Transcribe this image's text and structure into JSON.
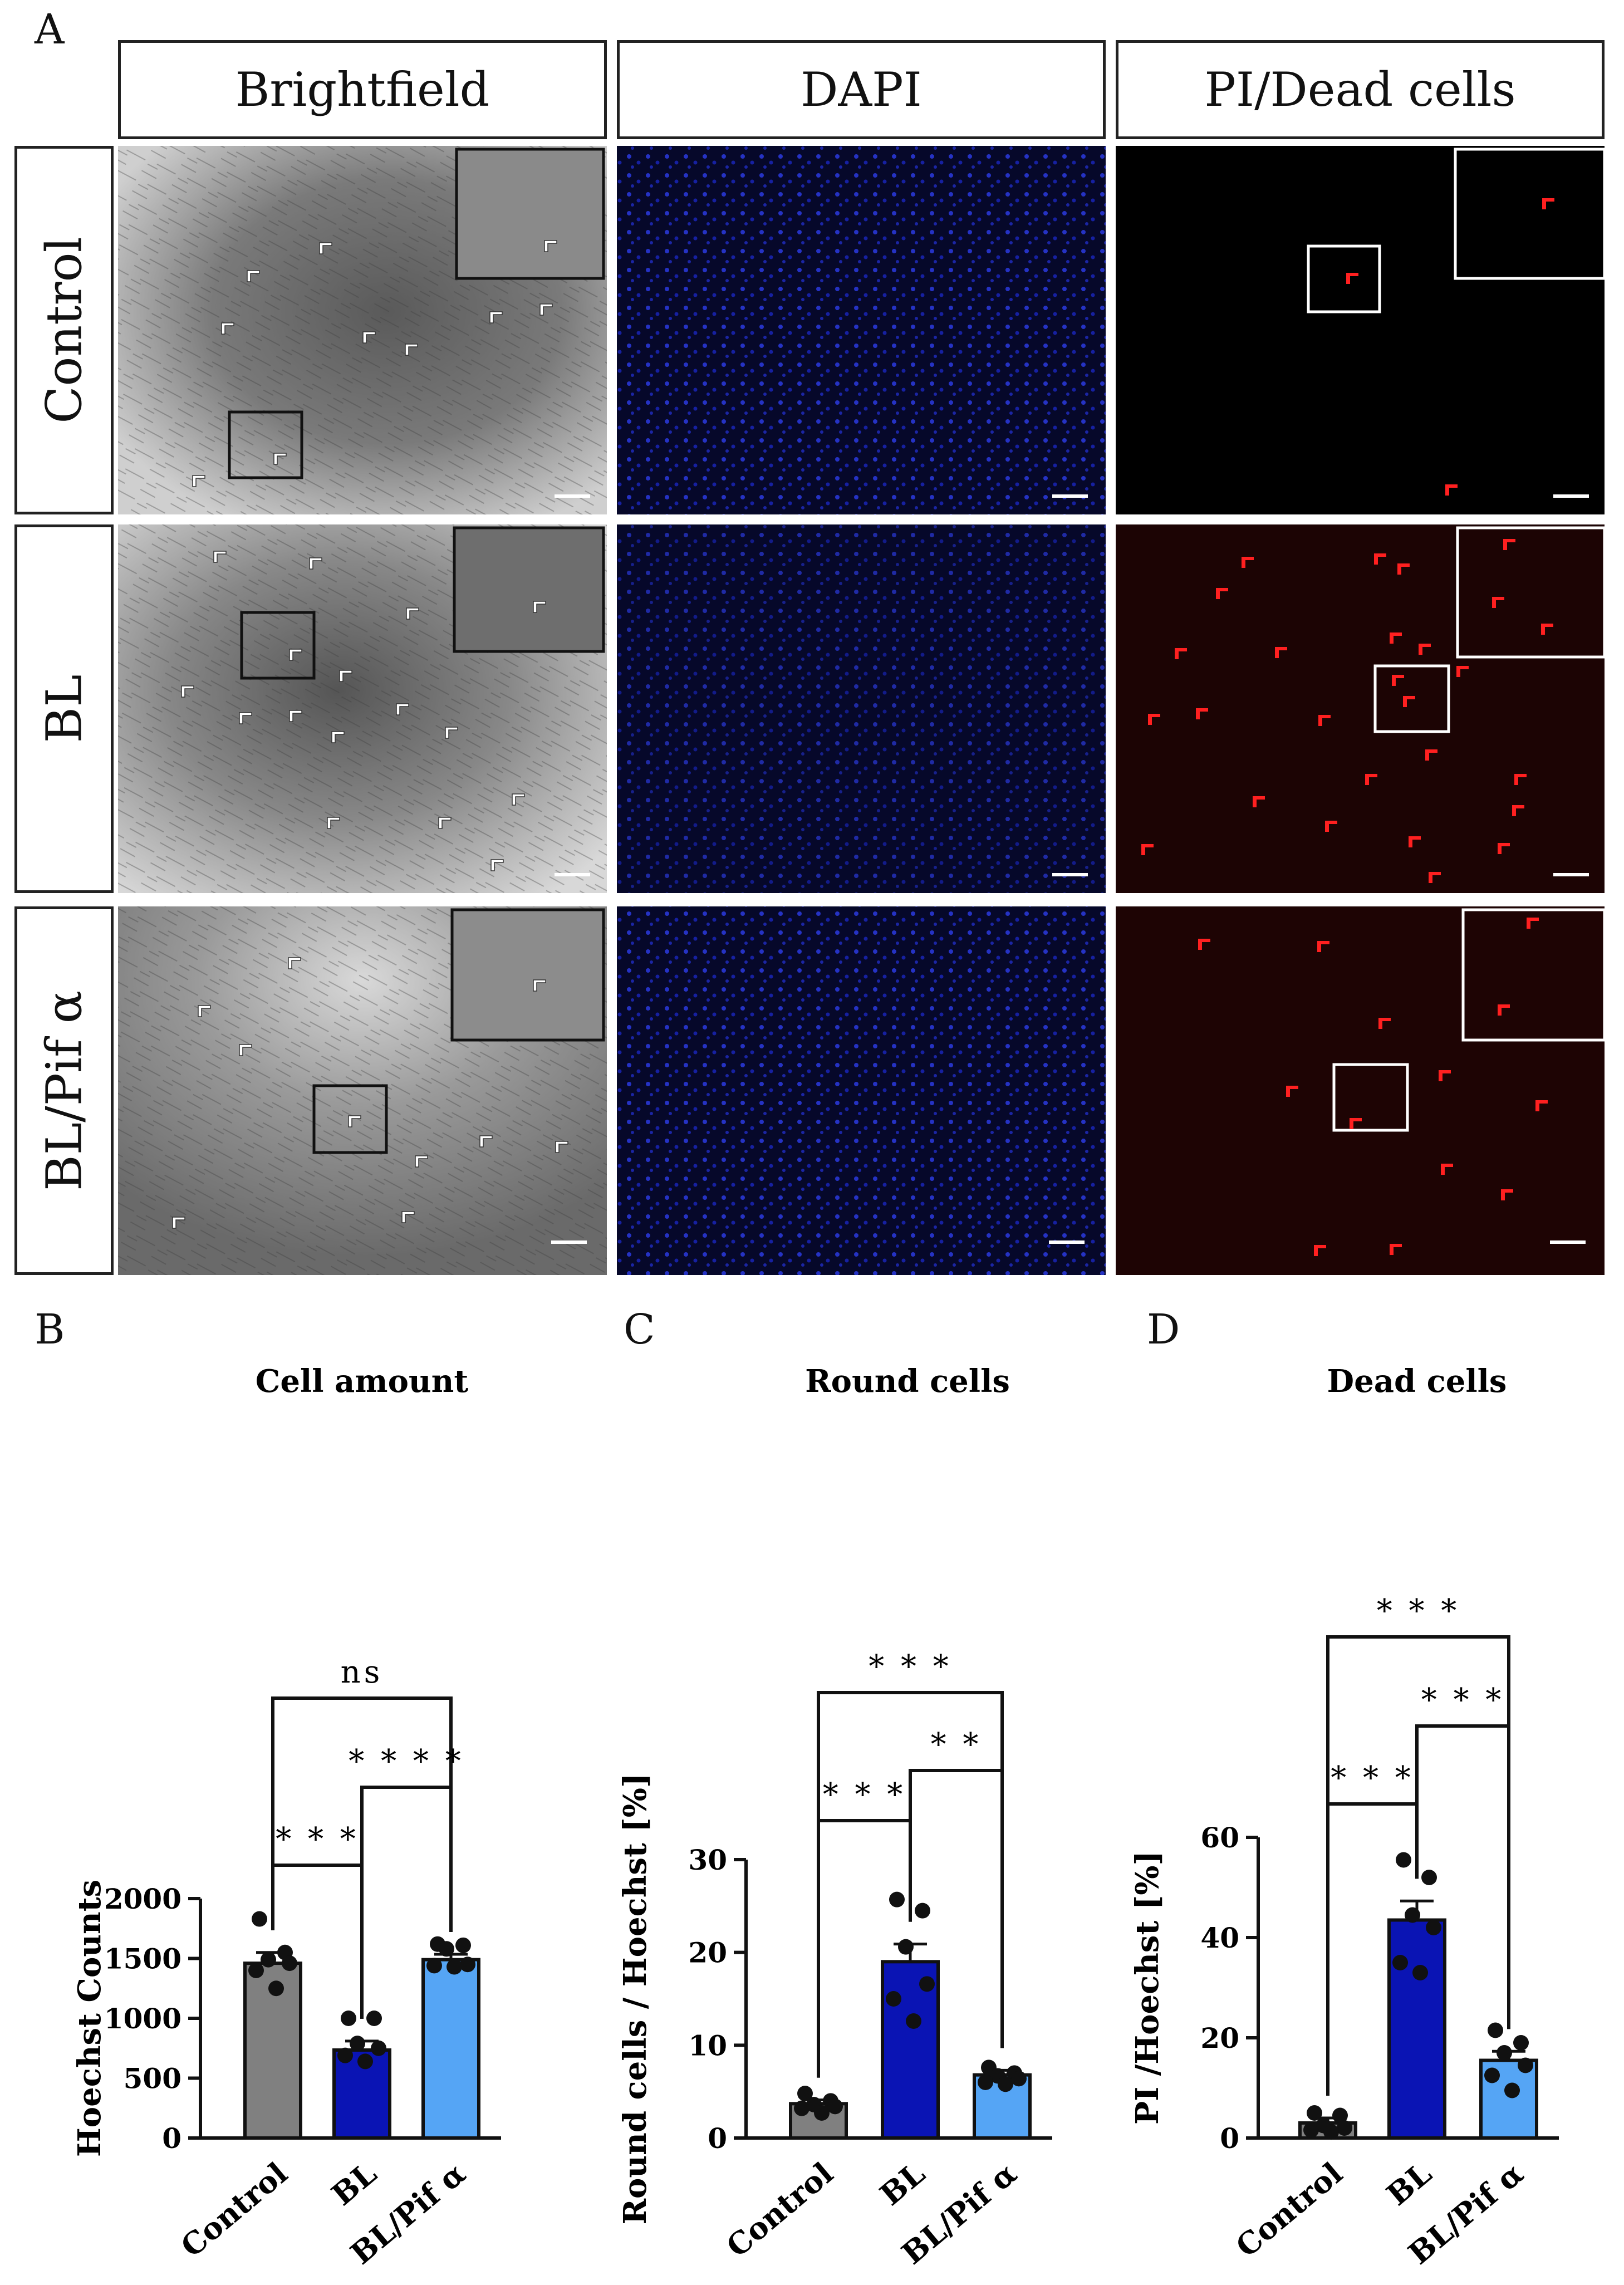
{
  "panels": {
    "a": "A",
    "b": "B",
    "c": "C",
    "d": "D"
  },
  "columns": [
    "Brightfield",
    "DAPI",
    "PI/Dead cells"
  ],
  "rows": [
    "Control",
    "BL",
    "BL/Pif α"
  ],
  "colors": {
    "control": "#808080",
    "bl": "#0a14b4",
    "blpif": "#55a5f5",
    "pi": "#e01818",
    "dapi": "#1a2ad0"
  },
  "chart_data": [
    {
      "type": "bar",
      "title": "Cell amount",
      "ylabel": "Hoechst Counts",
      "categories": [
        "Control",
        "BL",
        "BL/Pif α"
      ],
      "values": [
        1460,
        735,
        1490
      ],
      "errors": [
        90,
        75,
        45
      ],
      "points": [
        [
          1830,
          1550,
          1490,
          1460,
          1400,
          1250
        ],
        [
          1000,
          1000,
          790,
          750,
          690,
          640
        ],
        [
          1620,
          1610,
          1580,
          1450,
          1440,
          1430
        ]
      ],
      "ylim": [
        0,
        2000
      ],
      "yticks": [
        0,
        500,
        1000,
        1500,
        2000
      ],
      "brackets": [
        {
          "from": 0,
          "to": 2,
          "label": "ns"
        },
        {
          "from": 1,
          "to": 2,
          "label": "* * * *"
        },
        {
          "from": 0,
          "to": 1,
          "label": "* * *"
        }
      ]
    },
    {
      "type": "bar",
      "title": "Round cells",
      "ylabel": "Round cells /  Hoechst [%]",
      "categories": [
        "Control",
        "BL",
        "BL/Pif α"
      ],
      "values": [
        3.7,
        19,
        6.8
      ],
      "errors": [
        0.4,
        1.9,
        0.5
      ],
      "points": [
        [
          4.8,
          4.0,
          3.6,
          3.4,
          3.2,
          2.7
        ],
        [
          25.7,
          24.5,
          20.6,
          16.6,
          15.0,
          12.6
        ],
        [
          7.6,
          7.0,
          6.7,
          6.4,
          6.0,
          5.8
        ]
      ],
      "ylim": [
        0,
        30
      ],
      "yticks": [
        0,
        10,
        20,
        30
      ],
      "brackets": [
        {
          "from": 0,
          "to": 2,
          "label": "* * *"
        },
        {
          "from": 1,
          "to": 2,
          "label": "* *"
        },
        {
          "from": 0,
          "to": 1,
          "label": "* * *"
        }
      ]
    },
    {
      "type": "bar",
      "title": "Dead cells",
      "ylabel": "PI /Hoechst [%]",
      "categories": [
        "Control",
        "BL",
        "BL/Pif α"
      ],
      "values": [
        3,
        43.5,
        15.5
      ],
      "errors": [
        1.0,
        3.8,
        1.8
      ],
      "points": [
        [
          5.0,
          4.5,
          2.5,
          2.0,
          1.6,
          1.2
        ],
        [
          55.5,
          52.0,
          44.5,
          42.0,
          35.0,
          33.0
        ],
        [
          21.5,
          19.0,
          17.0,
          14.5,
          12.5,
          9.5
        ]
      ],
      "ylim": [
        0,
        60
      ],
      "yticks": [
        0,
        20,
        40,
        60
      ],
      "brackets": [
        {
          "from": 0,
          "to": 2,
          "label": "* * *"
        },
        {
          "from": 1,
          "to": 2,
          "label": "* * *"
        },
        {
          "from": 0,
          "to": 1,
          "label": "* * *"
        }
      ]
    }
  ]
}
